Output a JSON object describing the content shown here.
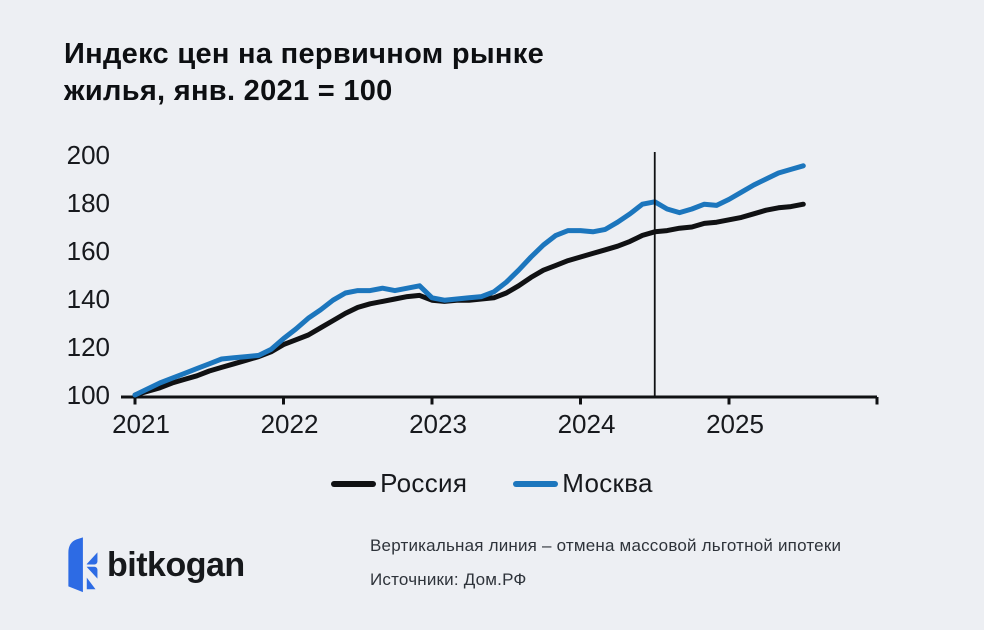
{
  "title": {
    "line1": "Индекс цен на первичном рынке",
    "line2": "жилья, янв. 2021 = 100"
  },
  "chart_data": {
    "type": "line",
    "title": "Индекс цен на первичном рынке жилья, янв. 2021 = 100",
    "x_unit": "month",
    "x_start": "2021-01",
    "x_end": "2025-07",
    "xticks": [
      "2021",
      "2022",
      "2023",
      "2024",
      "2025"
    ],
    "yticks": [
      100,
      120,
      140,
      160,
      180,
      200
    ],
    "ylim": [
      100,
      200
    ],
    "grid": false,
    "legend_position": "bottom-center",
    "vline": {
      "month_index": 42,
      "date": "2024-07",
      "meaning": "отмена массовой льготной ипотеки"
    },
    "series": [
      {
        "name": "Россия",
        "color": "#101113",
        "values": [
          100,
          101.5,
          103,
          105,
          106.5,
          108,
          110,
          111.5,
          113,
          114.5,
          116,
          118,
          121,
          123,
          125,
          128,
          131,
          134,
          136.5,
          138,
          139,
          140,
          141,
          141.5,
          139.5,
          139,
          139.5,
          139.5,
          140,
          140.5,
          142.5,
          145.5,
          149,
          152,
          154,
          156,
          157.5,
          159,
          160.5,
          162,
          164,
          166.5,
          168,
          168.5,
          169.5,
          170,
          171.5,
          172,
          173,
          174,
          175.5,
          177,
          178,
          178.5,
          179.5
        ]
      },
      {
        "name": "Москва",
        "color": "#1c76bd",
        "values": [
          100,
          102.5,
          105,
          107,
          109,
          111,
          113,
          115,
          115.5,
          116,
          116.5,
          119,
          123.5,
          127.5,
          132,
          135.5,
          139.5,
          142.5,
          143.5,
          143.5,
          144.5,
          143.5,
          144.5,
          145.5,
          140.5,
          139.5,
          140,
          140.5,
          141,
          143,
          147,
          152,
          157.5,
          162.5,
          166.5,
          168.5,
          168.5,
          168,
          169,
          172,
          175.5,
          179.5,
          180.5,
          177.5,
          176,
          177.5,
          179.5,
          179,
          181.5,
          184.5,
          187.5,
          190,
          192.5,
          194,
          195.5
        ]
      }
    ]
  },
  "footer": {
    "logo_text": "bitkogan",
    "note_line1": "Вертикальная линия – отмена массовой льготной ипотеки",
    "note_line2": "Источники: Дом.РФ"
  },
  "colors": {
    "background": "#edeff3",
    "axis": "#101113",
    "russia_line": "#101113",
    "moscow_line": "#1c76bd",
    "logo_blue": "#2d6be4",
    "note_text": "#2e333a"
  }
}
